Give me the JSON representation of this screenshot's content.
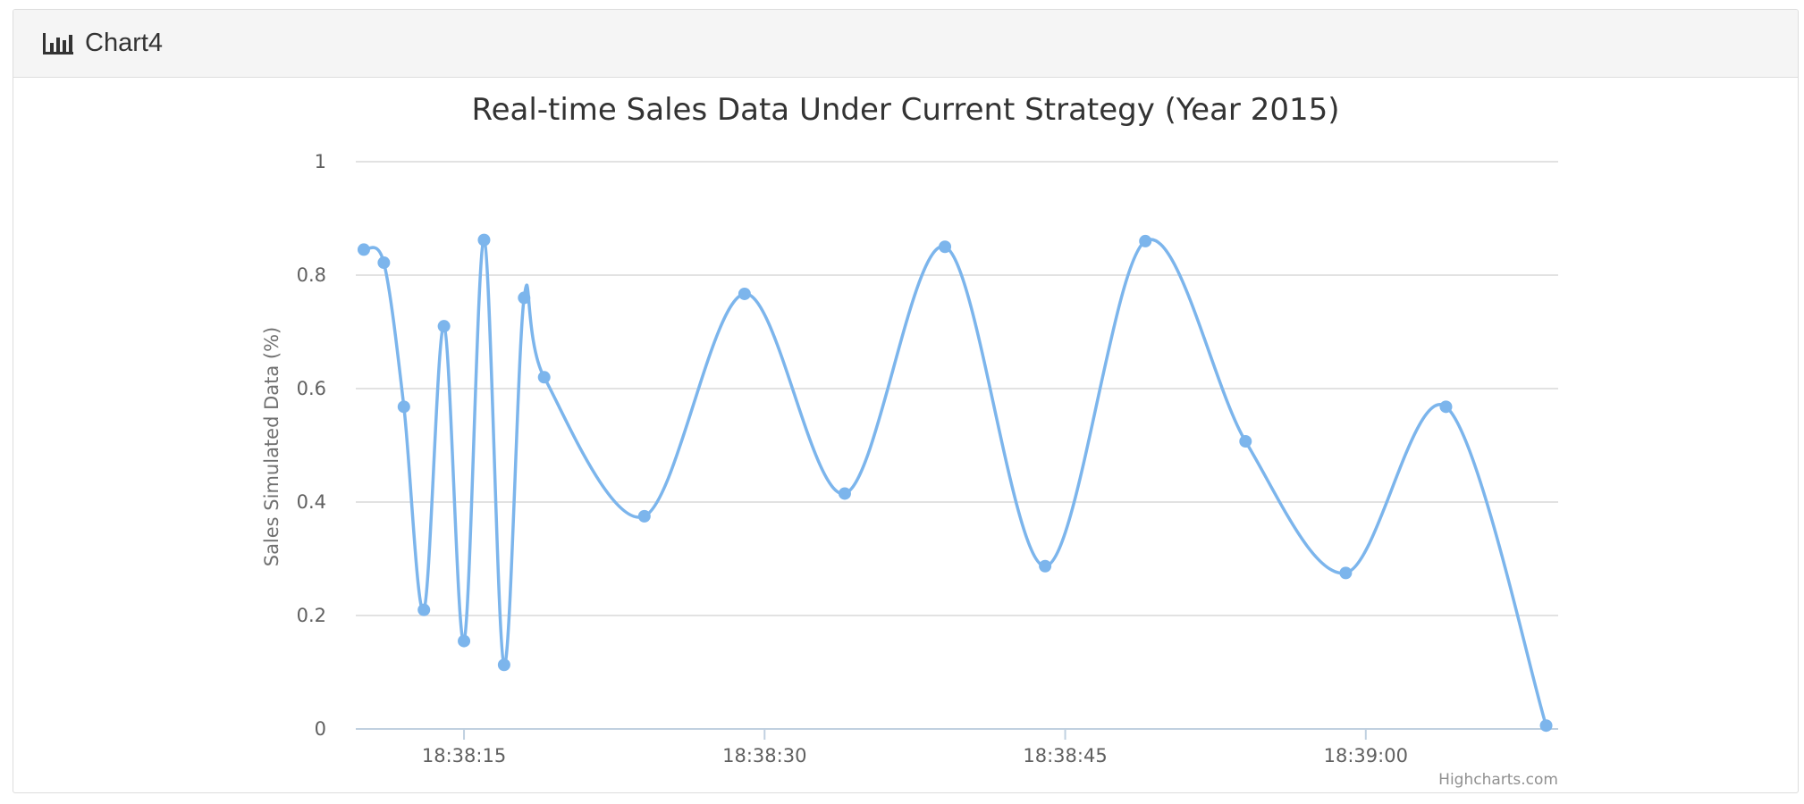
{
  "panel": {
    "title": "Chart4",
    "icon": "bar-chart-icon"
  },
  "chart_data": {
    "type": "line",
    "title": "Real-time Sales Data Under Current Strategy (Year 2015)",
    "ylabel": "Sales Simulated Data (%)",
    "xlabel": "",
    "ylim": [
      0,
      1
    ],
    "yticks": [
      0,
      0.2,
      0.4,
      0.6,
      0.8,
      1
    ],
    "ytick_labels": [
      "0",
      "0.2",
      "0.4",
      "0.6",
      "0.8",
      "1"
    ],
    "xlim": [
      "18:38:09.6",
      "18:39:09.6"
    ],
    "xticks": [
      "18:38:15",
      "18:38:30",
      "18:38:45",
      "18:39:00"
    ],
    "grid": true,
    "legend": "none",
    "credits": "Highcharts.com",
    "line_color": "#7cb5ec",
    "series": [
      {
        "x": [
          "18:38:10",
          "18:38:11",
          "18:38:12",
          "18:38:13",
          "18:38:14",
          "18:38:15",
          "18:38:16",
          "18:38:17",
          "18:38:18",
          "18:38:19",
          "18:38:24",
          "18:38:29",
          "18:38:34",
          "18:38:39",
          "18:38:44",
          "18:38:49",
          "18:38:54",
          "18:38:59",
          "18:39:04",
          "18:39:09"
        ],
        "values": [
          0.845,
          0.822,
          0.568,
          0.21,
          0.71,
          0.155,
          0.862,
          0.113,
          0.76,
          0.62,
          0.375,
          0.767,
          0.415,
          0.85,
          0.287,
          0.86,
          0.507,
          0.275,
          0.568,
          0.006
        ]
      }
    ]
  }
}
